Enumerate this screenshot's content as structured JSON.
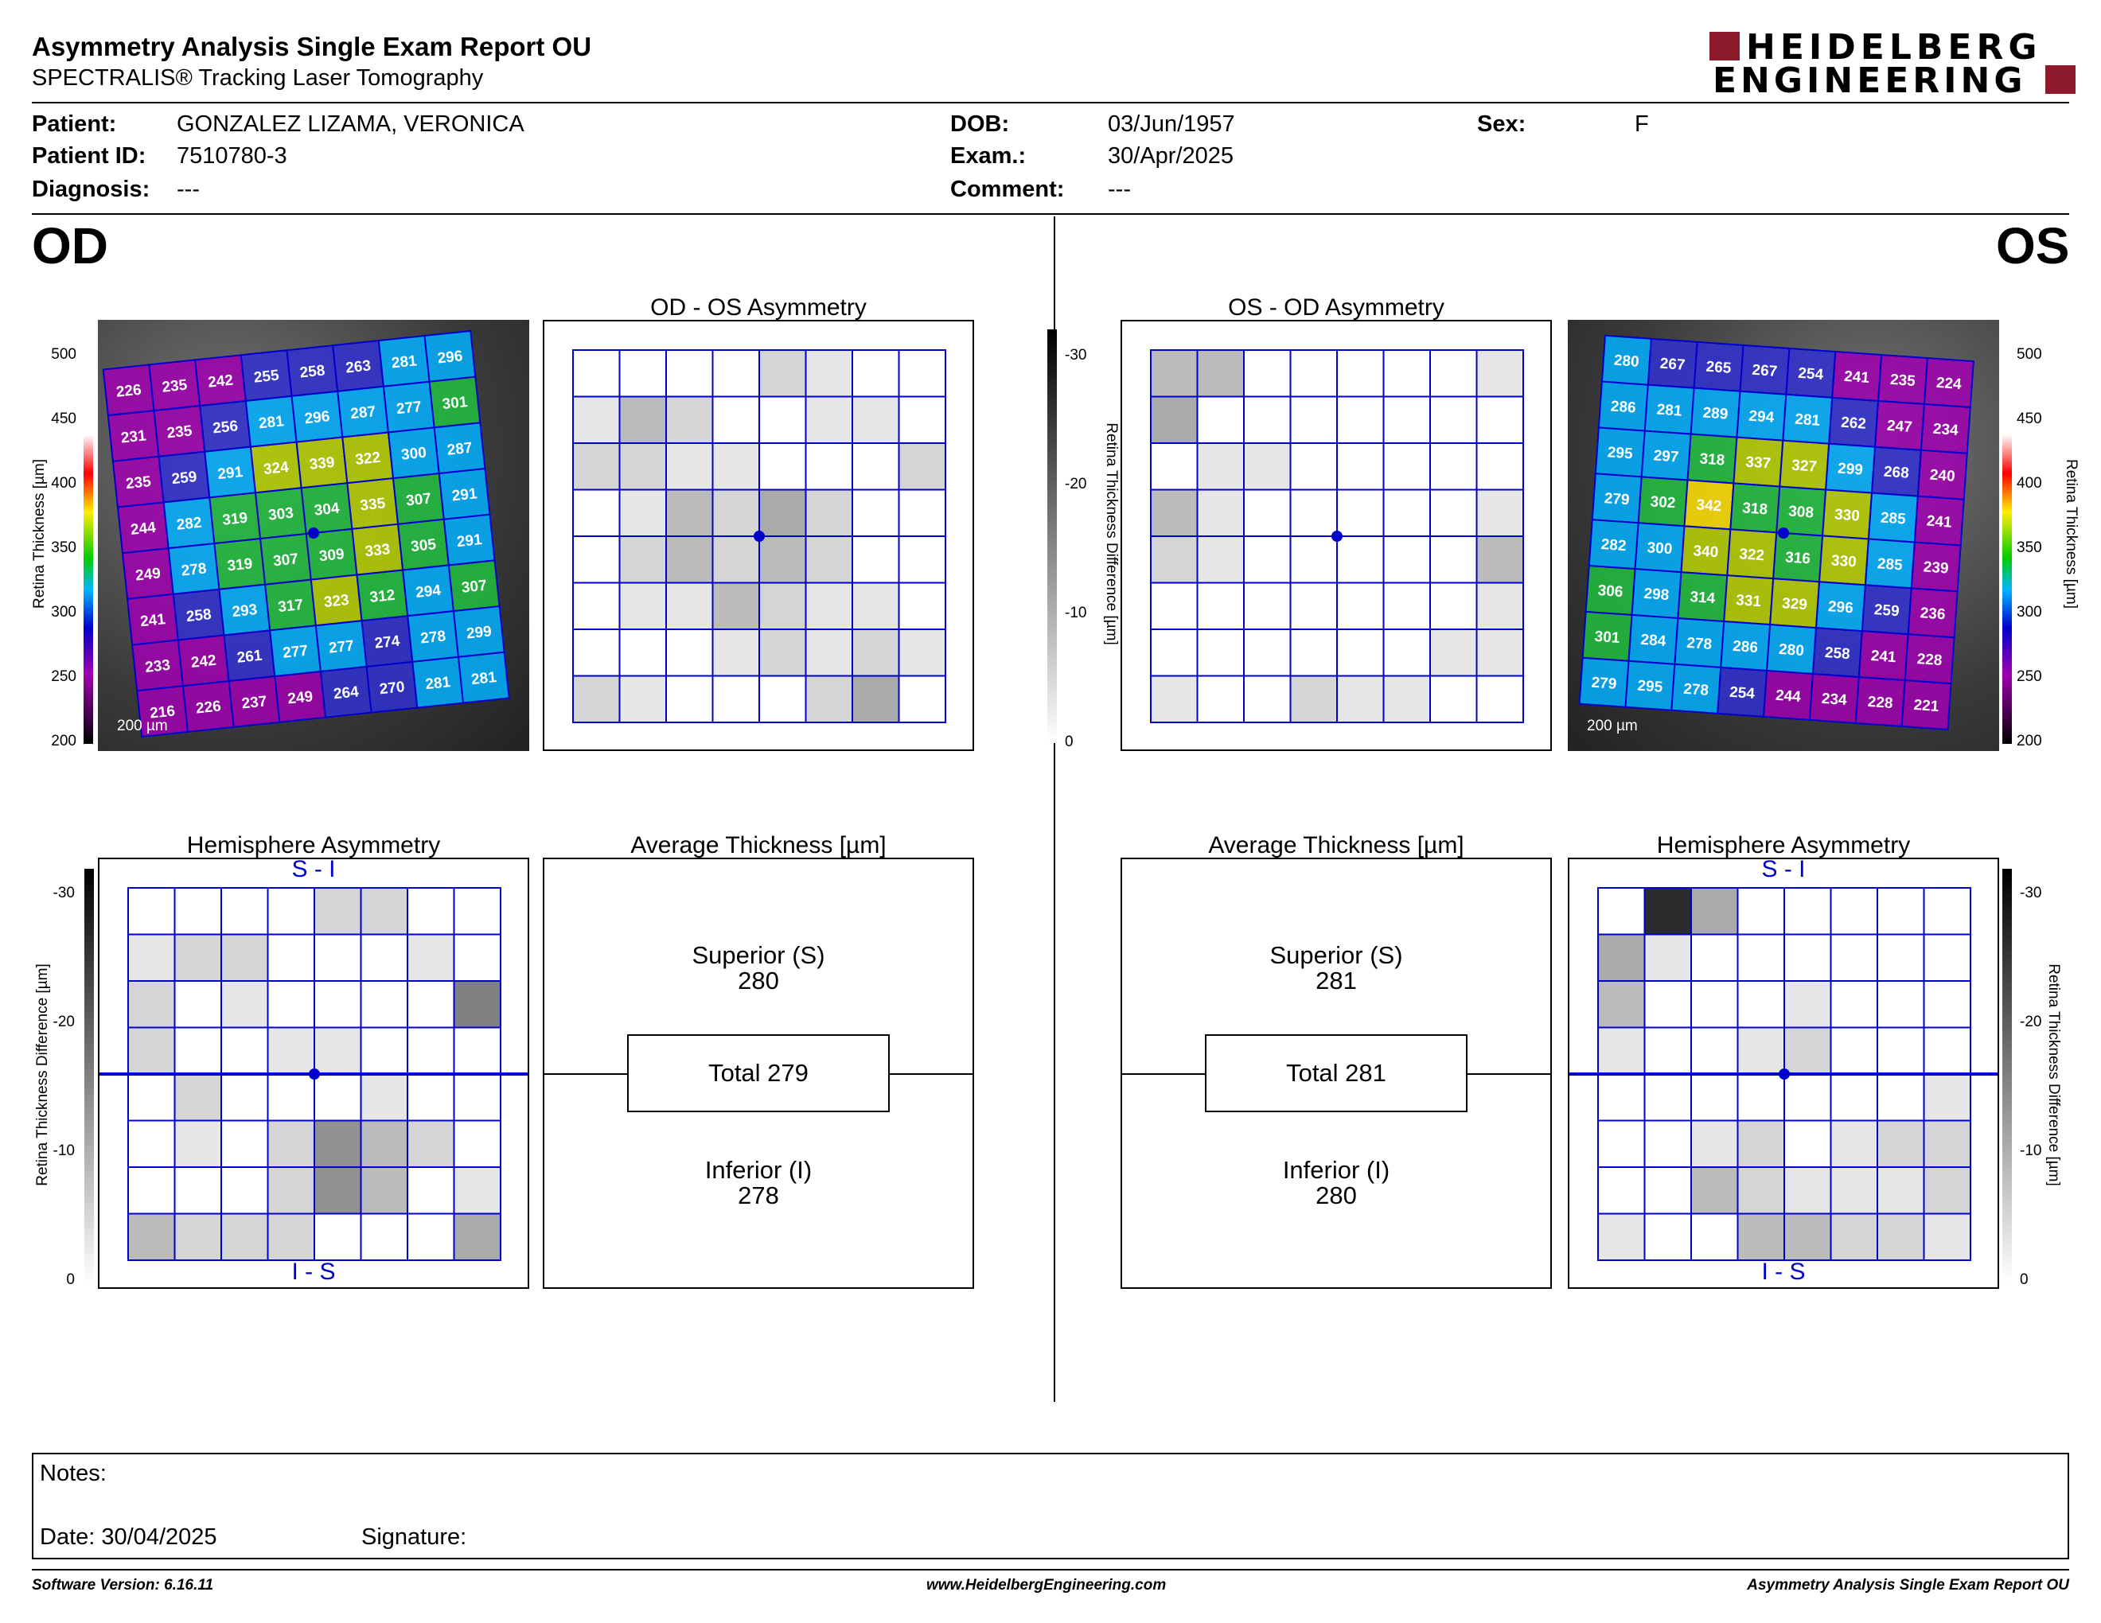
{
  "header": {
    "title": "Asymmetry Analysis Single Exam Report OU",
    "subtitle": "SPECTRALIS® Tracking Laser Tomography",
    "brand_line1": "HEIDELBERG",
    "brand_line2": "ENGINEERING",
    "brand_color": "#8c1a2b"
  },
  "patient": {
    "patient_label": "Patient:",
    "patient_value": "GONZALEZ LIZAMA, VERONICA",
    "id_label": "Patient ID:",
    "id_value": "7510780-3",
    "diag_label": "Diagnosis:",
    "diag_value": "---",
    "dob_label": "DOB:",
    "dob_value": "03/Jun/1957",
    "exam_label": "Exam.:",
    "exam_value": "30/Apr/2025",
    "comment_label": "Comment:",
    "comment_value": "---",
    "sex_label": "Sex:",
    "sex_value": "F"
  },
  "od": {
    "eye": "OD",
    "asym_title": "OD - OS Asymmetry",
    "hemi_title": "Hemisphere Asymmetry",
    "avg_title": "Average Thickness [µm]",
    "superior_label": "Superior (S)",
    "superior_value": "280",
    "total": "Total 279",
    "inferior_label": "Inferior (I)",
    "inferior_value": "278",
    "hemi_top": "S - I",
    "hemi_bottom": "I - S",
    "scale_bar": "200 µm",
    "thickness_grid": [
      [
        226,
        235,
        242,
        255,
        258,
        263,
        281,
        296
      ],
      [
        231,
        235,
        256,
        281,
        296,
        287,
        277,
        301
      ],
      [
        235,
        259,
        291,
        324,
        339,
        322,
        300,
        287
      ],
      [
        244,
        282,
        319,
        303,
        304,
        335,
        307,
        291
      ],
      [
        249,
        278,
        319,
        307,
        309,
        333,
        305,
        291
      ],
      [
        241,
        258,
        293,
        317,
        323,
        312,
        294,
        307
      ],
      [
        233,
        242,
        261,
        277,
        277,
        274,
        278,
        299
      ],
      [
        216,
        226,
        237,
        249,
        264,
        270,
        281,
        281
      ]
    ],
    "asym_grid": [
      [
        0,
        0,
        0,
        0,
        5,
        3,
        0,
        0
      ],
      [
        3,
        8,
        5,
        0,
        0,
        3,
        3,
        0
      ],
      [
        5,
        5,
        3,
        3,
        0,
        0,
        0,
        5
      ],
      [
        0,
        3,
        8,
        5,
        10,
        5,
        0,
        0
      ],
      [
        0,
        5,
        8,
        5,
        8,
        5,
        0,
        0
      ],
      [
        0,
        3,
        3,
        8,
        5,
        3,
        3,
        0
      ],
      [
        0,
        0,
        0,
        3,
        5,
        3,
        5,
        3
      ],
      [
        5,
        3,
        0,
        0,
        0,
        5,
        10,
        0
      ]
    ],
    "hemi_grid": [
      [
        0,
        0,
        0,
        0,
        5,
        5,
        0,
        0
      ],
      [
        3,
        5,
        5,
        0,
        0,
        0,
        3,
        0
      ],
      [
        5,
        0,
        3,
        0,
        0,
        0,
        0,
        15
      ],
      [
        5,
        0,
        0,
        3,
        3,
        0,
        0,
        0
      ],
      [
        0,
        5,
        0,
        0,
        0,
        3,
        0,
        0
      ],
      [
        0,
        3,
        0,
        5,
        13,
        8,
        5,
        0
      ],
      [
        0,
        0,
        0,
        5,
        13,
        8,
        0,
        3
      ],
      [
        8,
        5,
        5,
        5,
        0,
        0,
        0,
        10
      ]
    ]
  },
  "os": {
    "eye": "OS",
    "asym_title": "OS - OD Asymmetry",
    "hemi_title": "Hemisphere Asymmetry",
    "avg_title": "Average Thickness [µm]",
    "superior_label": "Superior (S)",
    "superior_value": "281",
    "total": "Total 281",
    "inferior_label": "Inferior (I)",
    "inferior_value": "280",
    "hemi_top": "S - I",
    "hemi_bottom": "I - S",
    "scale_bar": "200 µm",
    "thickness_grid": [
      [
        280,
        267,
        265,
        267,
        254,
        241,
        235,
        224
      ],
      [
        286,
        281,
        289,
        294,
        281,
        262,
        247,
        234
      ],
      [
        295,
        297,
        318,
        337,
        327,
        299,
        268,
        240
      ],
      [
        279,
        302,
        342,
        318,
        308,
        330,
        285,
        241
      ],
      [
        282,
        300,
        340,
        322,
        316,
        330,
        285,
        239
      ],
      [
        306,
        298,
        314,
        331,
        329,
        296,
        259,
        236
      ],
      [
        301,
        284,
        278,
        286,
        280,
        258,
        241,
        228
      ],
      [
        279,
        295,
        278,
        254,
        244,
        234,
        228,
        221
      ]
    ],
    "asym_grid": [
      [
        8,
        8,
        0,
        0,
        0,
        0,
        0,
        3
      ],
      [
        10,
        0,
        0,
        0,
        0,
        0,
        0,
        0
      ],
      [
        0,
        3,
        3,
        0,
        0,
        0,
        0,
        0
      ],
      [
        8,
        3,
        0,
        0,
        0,
        0,
        0,
        3
      ],
      [
        5,
        3,
        0,
        0,
        0,
        0,
        0,
        8
      ],
      [
        0,
        0,
        0,
        0,
        0,
        0,
        0,
        3
      ],
      [
        0,
        0,
        0,
        0,
        0,
        0,
        3,
        3
      ],
      [
        3,
        0,
        0,
        5,
        3,
        3,
        0,
        0
      ]
    ],
    "hemi_grid": [
      [
        0,
        25,
        10,
        0,
        0,
        0,
        0,
        0
      ],
      [
        10,
        3,
        0,
        0,
        0,
        0,
        0,
        0
      ],
      [
        8,
        0,
        0,
        0,
        3,
        0,
        0,
        0
      ],
      [
        3,
        0,
        0,
        3,
        5,
        0,
        0,
        0
      ],
      [
        0,
        0,
        0,
        0,
        0,
        0,
        0,
        3
      ],
      [
        0,
        0,
        3,
        5,
        0,
        3,
        5,
        5
      ],
      [
        0,
        0,
        8,
        5,
        3,
        3,
        3,
        5
      ],
      [
        3,
        0,
        0,
        8,
        8,
        5,
        5,
        3
      ]
    ]
  },
  "scales": {
    "thickness_label": "Retina Thickness [µm]",
    "thickness_ticks": [
      "500",
      "450",
      "400",
      "350",
      "300",
      "250",
      "200"
    ],
    "diff_label": "Retina Thickness Difference [µm]",
    "diff_ticks": [
      "-30",
      "-20",
      "-10",
      "0"
    ]
  },
  "notes": {
    "notes_label": "Notes:",
    "date_label": "Date: 30/04/2025",
    "signature_label": "Signature:"
  },
  "footer": {
    "software": "Software Version: 6.16.11",
    "website": "www.HeidelbergEngineering.com",
    "report": "Asymmetry Analysis Single Exam Report OU"
  }
}
